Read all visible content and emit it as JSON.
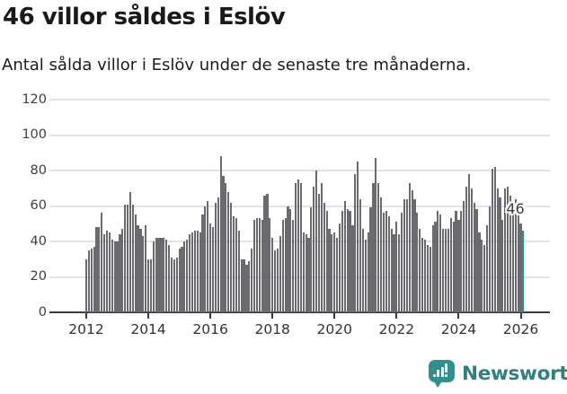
{
  "page": {
    "title": "46 villor såldes i Eslöv",
    "subtitle": "Antal sålda villor i Eslöv under de senaste tre månaderna."
  },
  "chart_data": {
    "type": "bar",
    "title": "46 villor såldes i Eslöv",
    "subtitle": "Antal sålda villor i Eslöv under de senaste tre månaderna.",
    "x_start": "2012-01",
    "x_end": "2026-02",
    "xticks": [
      "2012",
      "2014",
      "2016",
      "2018",
      "2020",
      "2022",
      "2024",
      "2026"
    ],
    "yticks": [
      0,
      20,
      40,
      60,
      80,
      100,
      120
    ],
    "ylim": [
      0,
      124
    ],
    "grid": true,
    "legend": "none",
    "bar_color": "#6b6b6f",
    "highlight_color": "#16988e",
    "axis_color": "#3b3b3b",
    "grid_color": "#e3e3e3",
    "highlight": {
      "index": 169,
      "label": "46",
      "value": 46
    },
    "values": [
      30,
      35,
      36,
      37,
      48,
      48,
      56,
      44,
      46,
      45,
      41,
      40,
      40,
      44,
      47,
      61,
      61,
      68,
      61,
      55,
      49,
      47,
      43,
      49,
      30,
      30,
      40,
      42,
      42,
      42,
      42,
      41,
      38,
      31,
      30,
      31,
      36,
      37,
      40,
      41,
      44,
      45,
      46,
      46,
      45,
      55,
      60,
      63,
      50,
      48,
      62,
      65,
      88,
      77,
      73,
      68,
      62,
      54,
      53,
      46,
      30,
      30,
      27,
      29,
      36,
      52,
      53,
      53,
      52,
      66,
      67,
      53,
      42,
      35,
      36,
      43,
      52,
      53,
      60,
      58,
      52,
      73,
      75,
      73,
      45,
      44,
      42,
      59,
      71,
      80,
      67,
      73,
      62,
      57,
      47,
      44,
      45,
      42,
      50,
      57,
      63,
      58,
      57,
      49,
      78,
      85,
      64,
      47,
      41,
      45,
      59,
      73,
      87,
      73,
      65,
      56,
      57,
      54,
      47,
      44,
      51,
      44,
      56,
      64,
      64,
      73,
      69,
      64,
      56,
      47,
      42,
      41,
      38,
      37,
      49,
      51,
      57,
      55,
      47,
      47,
      47,
      53,
      51,
      57,
      52,
      57,
      63,
      71,
      78,
      70,
      62,
      58,
      45,
      41,
      38,
      49,
      60,
      81,
      82,
      70,
      65,
      52,
      70,
      71,
      66,
      57,
      64,
      56,
      50,
      46
    ]
  },
  "branding": {
    "name": "Newsworthy",
    "icon_color": "#2f918e",
    "text_color": "#31807d"
  }
}
